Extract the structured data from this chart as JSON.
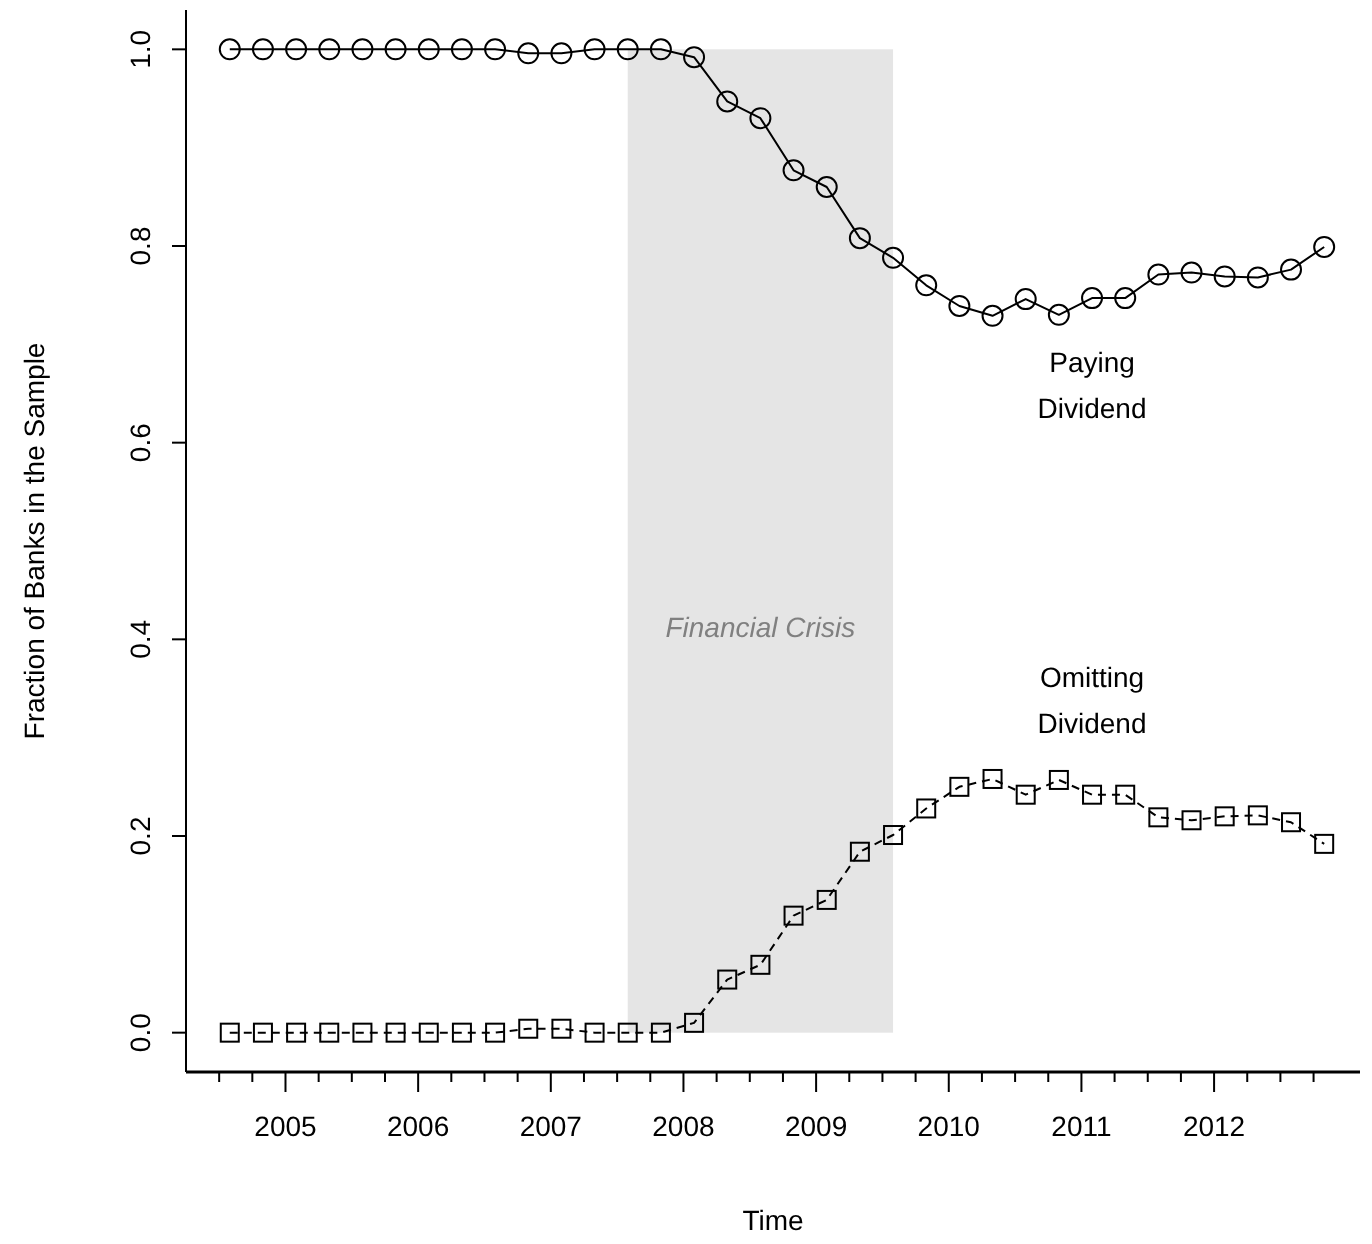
{
  "chart_data": {
    "type": "line",
    "xlabel": "Time",
    "ylabel": "Fraction of Banks in the Sample",
    "x": [
      2004.58,
      2004.83,
      2005.08,
      2005.33,
      2005.58,
      2005.83,
      2006.08,
      2006.33,
      2006.58,
      2006.83,
      2007.08,
      2007.33,
      2007.58,
      2007.83,
      2008.08,
      2008.33,
      2008.58,
      2008.83,
      2009.08,
      2009.33,
      2009.58,
      2009.83,
      2010.08,
      2010.33,
      2010.58,
      2010.83,
      2011.08,
      2011.33,
      2011.58,
      2011.83,
      2012.08,
      2012.33,
      2012.58,
      2012.83
    ],
    "series": [
      {
        "name": "Paying Dividend",
        "color": "#000000",
        "marker": "circle",
        "line_style": "solid",
        "values": [
          1,
          1,
          1,
          1,
          1,
          1,
          1,
          1,
          1,
          0.996,
          0.996,
          1,
          1,
          1,
          0.992,
          0.947,
          0.93,
          0.877,
          0.86,
          0.808,
          0.788,
          0.76,
          0.739,
          0.729,
          0.746,
          0.73,
          0.747,
          0.747,
          0.771,
          0.773,
          0.769,
          0.768,
          0.776,
          0.799
        ]
      },
      {
        "name": "Omitting Dividend",
        "color": "#000000",
        "marker": "square",
        "line_style": "dashed",
        "values": [
          0,
          0,
          0,
          0,
          0,
          0,
          0,
          0,
          0,
          0.004,
          0.004,
          0,
          0,
          0,
          0.01,
          0.054,
          0.069,
          0.119,
          0.135,
          0.184,
          0.201,
          0.228,
          0.25,
          0.258,
          0.242,
          0.257,
          0.242,
          0.242,
          0.219,
          0.216,
          0.22,
          0.221,
          0.214,
          0.192
        ]
      }
    ],
    "xlim": [
      2004.25,
      2013.1
    ],
    "xticks": [
      {
        "value": 2004.5,
        "label": null
      },
      {
        "value": 2004.75,
        "label": null
      },
      2005,
      {
        "value": 2005.25,
        "label": null
      },
      {
        "value": 2005.5,
        "label": null
      },
      {
        "value": 2005.75,
        "label": null
      },
      2006,
      {
        "value": 2006.25,
        "label": null
      },
      {
        "value": 2006.5,
        "label": null
      },
      {
        "value": 2006.75,
        "label": null
      },
      2007,
      {
        "value": 2007.25,
        "label": null
      },
      {
        "value": 2007.5,
        "label": null
      },
      {
        "value": 2007.75,
        "label": null
      },
      2008,
      {
        "value": 2008.25,
        "label": null
      },
      {
        "value": 2008.5,
        "label": null
      },
      {
        "value": 2008.75,
        "label": null
      },
      2009,
      {
        "value": 2009.25,
        "label": null
      },
      {
        "value": 2009.5,
        "label": null
      },
      {
        "value": 2009.75,
        "label": null
      },
      2010,
      {
        "value": 2010.25,
        "label": null
      },
      {
        "value": 2010.5,
        "label": null
      },
      {
        "value": 2010.75,
        "label": null
      },
      2011,
      {
        "value": 2011.25,
        "label": null
      },
      {
        "value": 2011.5,
        "label": null
      },
      {
        "value": 2011.75,
        "label": null
      },
      2012,
      {
        "value": 2012.25,
        "label": null
      },
      {
        "value": 2012.5,
        "label": null
      },
      {
        "value": 2012.75,
        "label": null
      }
    ],
    "ylim": [
      -0.04,
      1.04
    ],
    "yticks": [
      {
        "value": 0,
        "label": "0.0"
      },
      0.2,
      0.4,
      0.6,
      0.8,
      {
        "value": 1,
        "label": "1.0"
      }
    ],
    "bands": [
      {
        "axis": "x",
        "from": 2007.58,
        "to": 2009.58,
        "label": "Financial Crisis",
        "color": "#e5e5e5"
      }
    ],
    "grid": false
  }
}
